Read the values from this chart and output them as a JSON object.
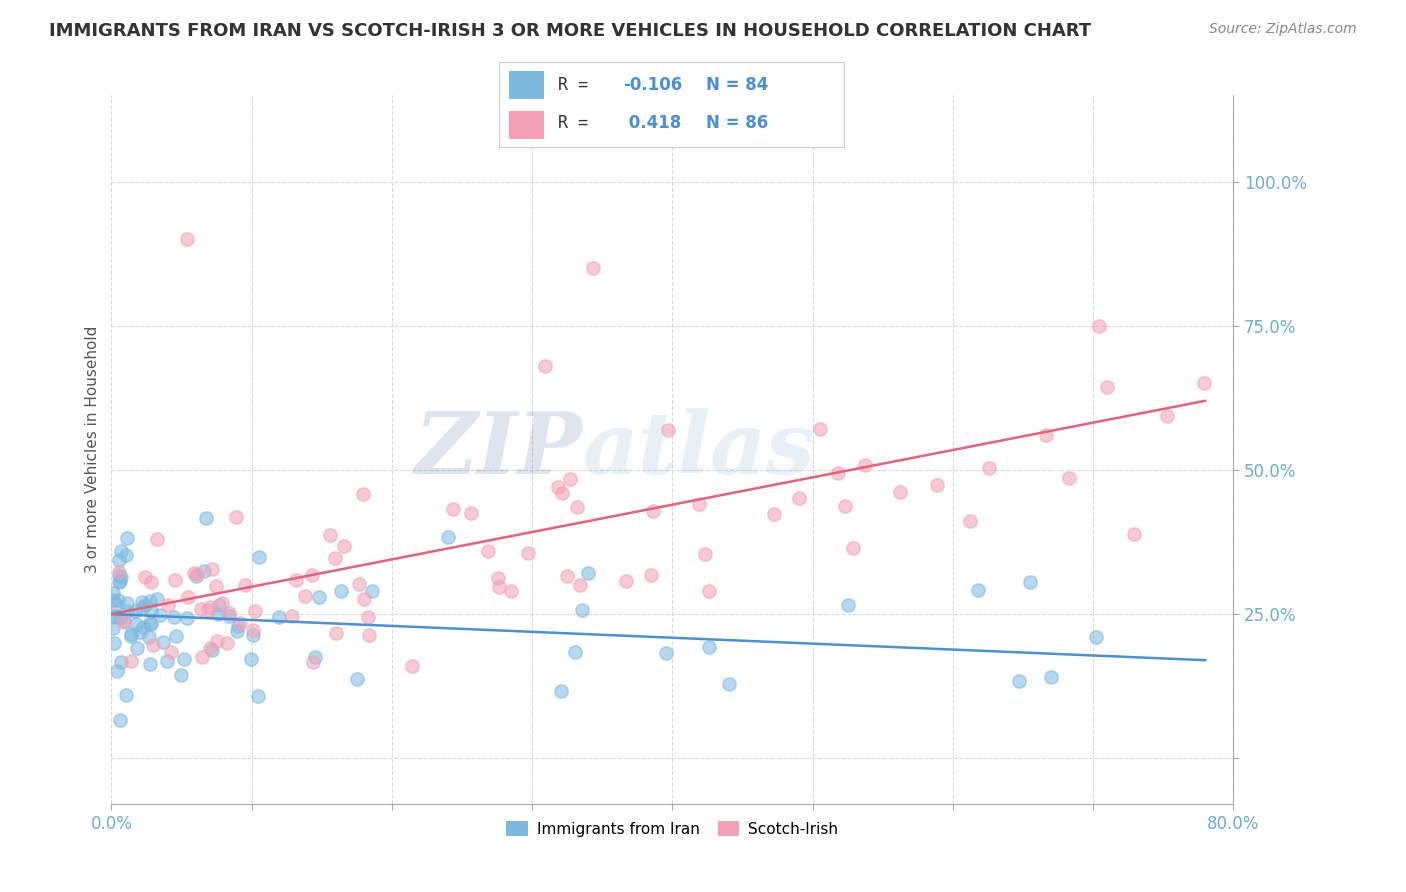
{
  "title": "IMMIGRANTS FROM IRAN VS SCOTCH-IRISH 3 OR MORE VEHICLES IN HOUSEHOLD CORRELATION CHART",
  "source_text": "Source: ZipAtlas.com",
  "ylabel": "3 or more Vehicles in Household",
  "xlim": [
    0.0,
    80.0
  ],
  "ylim": [
    -8.0,
    115.0
  ],
  "blue_R": -0.106,
  "blue_N": 84,
  "pink_R": 0.418,
  "pink_N": 86,
  "blue_color": "#7cb9e0",
  "pink_color": "#f4a0b5",
  "blue_line_color": "#4a90d9",
  "pink_line_color": "#e8607a",
  "blue_label": "Immigrants from Iran",
  "pink_label": "Scotch-Irish",
  "watermark_zip": "ZIP",
  "watermark_atlas": "atlas",
  "background_color": "#ffffff",
  "grid_color": "#d0d0d0",
  "title_color": "#333333",
  "axis_label_color": "#6baed6",
  "legend_text_color": "#333333",
  "blue_trend_x0": 0,
  "blue_trend_y0": 25,
  "blue_trend_x1": 78,
  "blue_trend_y1": 17,
  "pink_trend_x0": 0,
  "pink_trend_y0": 25,
  "pink_trend_x1": 78,
  "pink_trend_y1": 62
}
